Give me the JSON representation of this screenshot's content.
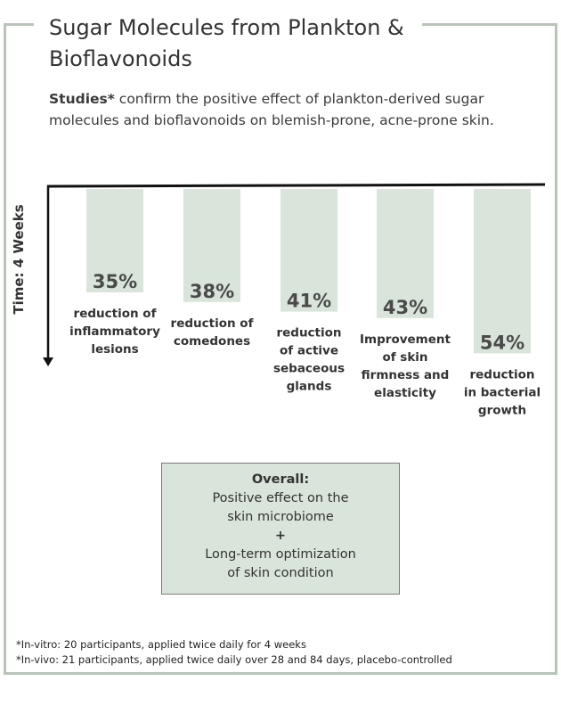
{
  "header": {
    "title": "Sugar Molecules from Plankton & Bioflavonoids",
    "intro_lead": "Studies*",
    "intro_text": " confirm the positive effect of plankton-derived sugar molecules and bioflavonoids on blemish-prone, acne-prone skin."
  },
  "chart_data": {
    "type": "bar",
    "orientation": "vertical, bars hanging from top axis",
    "ylabel": "Time: 4 Weeks",
    "categories": [
      "reduction of inflammatory lesions",
      "reduction of comedones",
      "reduction of active sebaceous glands",
      "Improvement of skin firmness and elasticity",
      "reduction in bacterial growth"
    ],
    "category_lines": [
      [
        "reduction of",
        "inflammatory",
        "lesions"
      ],
      [
        "reduction of",
        "comedones"
      ],
      [
        "reduction",
        "of active",
        "sebaceous",
        "glands"
      ],
      [
        "Improvement",
        "of skin",
        "firmness and",
        "elasticity"
      ],
      [
        "reduction",
        "in bacterial",
        "growth"
      ]
    ],
    "values": [
      35,
      38,
      41,
      43,
      54
    ],
    "value_labels": [
      "35%",
      "38%",
      "41%",
      "43%",
      "54%"
    ],
    "unit": "%",
    "colors": {
      "bar": "#d9e5da",
      "axis": "#111111",
      "value_text": "#4a4a4a"
    }
  },
  "overall": {
    "heading": "Overall:",
    "line1": "Positive effect on the",
    "line2": "skin microbiome",
    "plus": "+",
    "line3": "Long-term optimization",
    "line4": "of skin condition"
  },
  "footnotes": {
    "vitro": "*In-vitro: 20 participants, applied twice daily for 4 weeks",
    "vivo": "*In-vivo: 21 participants, applied twice daily over 28 and 84 days, placebo-controlled"
  },
  "colors": {
    "frame": "#b7c4b8",
    "box_fill": "#d9e5da"
  }
}
